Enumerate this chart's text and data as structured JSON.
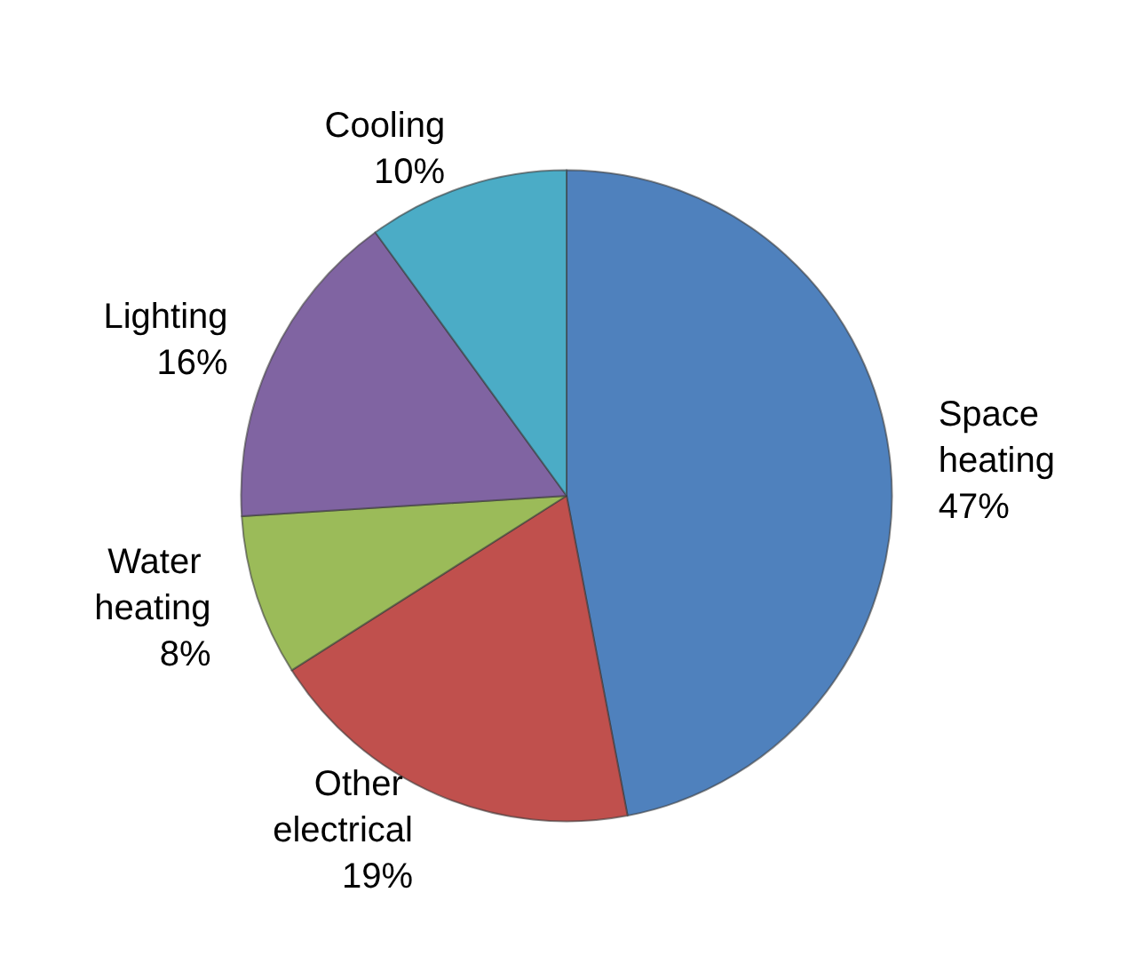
{
  "chart_data": {
    "type": "pie",
    "categories": [
      "Space heating",
      "Other electrical",
      "Water heating",
      "Lighting",
      "Cooling"
    ],
    "values": [
      47,
      19,
      8,
      16,
      10
    ],
    "value_labels": [
      "47%",
      "19%",
      "8%",
      "16%",
      "10%"
    ],
    "colors": [
      "#4f81bd",
      "#c0504d",
      "#9bbb59",
      "#8064a2",
      "#4bacc6"
    ],
    "legend": false
  }
}
